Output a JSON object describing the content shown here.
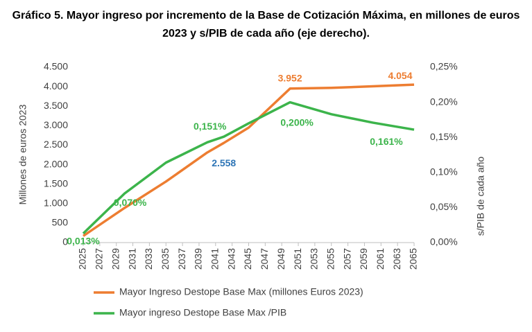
{
  "chart_data": {
    "type": "line",
    "title": "Gráfico 5. Mayor ingreso por incremento de la Base de Cotización Máxima, en millones de euros 2023 y s/PIB de cada año (eje derecho).",
    "y_label": "Millones de euros 2023",
    "y2_label": "s/PIB de cada año",
    "x": [
      2025,
      2030,
      2035,
      2040,
      2042,
      2045,
      2050,
      2055,
      2060,
      2065
    ],
    "xlim": [
      2025,
      2065
    ],
    "xticks": [
      2025,
      2027,
      2029,
      2031,
      2033,
      2035,
      2037,
      2039,
      2041,
      2043,
      2045,
      2047,
      2049,
      2051,
      2053,
      2055,
      2057,
      2059,
      2061,
      2063,
      2065
    ],
    "ylim": [
      0,
      4500
    ],
    "yticks": [
      0,
      500,
      {
        "value": 1000,
        "label": "1.000"
      },
      {
        "value": 1500,
        "label": "1.500"
      },
      {
        "value": 2000,
        "label": "2.000"
      },
      {
        "value": 2500,
        "label": "2.500"
      },
      {
        "value": 3000,
        "label": "3.000"
      },
      {
        "value": 3500,
        "label": "3.500"
      },
      {
        "value": 4000,
        "label": "4.000"
      },
      {
        "value": 4500,
        "label": "4.500"
      }
    ],
    "y2lim": [
      0,
      0.25
    ],
    "y2ticks": [
      {
        "value": 0,
        "label": "0,00%"
      },
      {
        "value": 0.05,
        "label": "0,05%"
      },
      {
        "value": 0.1,
        "label": "0,10%"
      },
      {
        "value": 0.15,
        "label": "0,15%"
      },
      {
        "value": 0.2,
        "label": "0,20%"
      },
      {
        "value": 0.25,
        "label": "0,25%"
      }
    ],
    "grid": false,
    "series": [
      {
        "name": "Mayor Ingreso Destope Base Max (millones Euros 2023)",
        "color": "#ed7d31",
        "values": [
          170,
          890,
          1566,
          2313,
          2558,
          2950,
          3952,
          3970,
          4010,
          4054
        ],
        "value_labels": [
          null,
          null,
          null,
          null,
          "2.558",
          null,
          "3.952",
          null,
          null,
          "4.054"
        ],
        "value_label_colors": [
          null,
          null,
          null,
          null,
          "#2e75b6",
          null,
          "#ed7d31",
          null,
          null,
          "#ed7d31"
        ]
      },
      {
        "name": "Mayor ingreso Destope Base Max /PIB",
        "color": "#3cb44b",
        "axis": "y2",
        "values": [
          0.013,
          0.07,
          0.114,
          0.143,
          0.151,
          0.17,
          0.2,
          0.183,
          0.171,
          0.161
        ],
        "value_labels": [
          "0,013%",
          "0,070%",
          null,
          null,
          "0,151%",
          null,
          "0,200%",
          null,
          null,
          "0,161%"
        ],
        "value_label_colors": [
          "#3cb44b",
          "#3cb44b",
          null,
          null,
          "#3cb44b",
          null,
          "#3cb44b",
          null,
          null,
          "#3cb44b"
        ]
      }
    ]
  }
}
